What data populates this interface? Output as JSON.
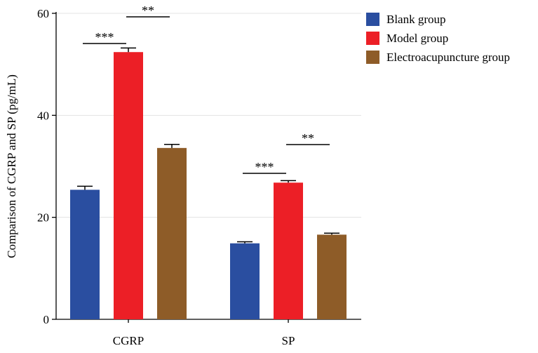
{
  "chart_data": {
    "type": "bar",
    "title": "",
    "xlabel": "",
    "ylabel": "Comparison of CGRP and SP (pg/mL)",
    "ylim": [
      0,
      60
    ],
    "yticks": [
      0,
      20,
      40,
      60
    ],
    "grid": true,
    "legend_position": "right",
    "categories": [
      "CGRP",
      "SP"
    ],
    "series": [
      {
        "name": "Blank group",
        "color": "#2a4ea0",
        "values": [
          25.4,
          14.9
        ],
        "errors": [
          0.7,
          0.3
        ]
      },
      {
        "name": "Model group",
        "color": "#ec1f26",
        "values": [
          52.4,
          26.8
        ],
        "errors": [
          0.8,
          0.4
        ]
      },
      {
        "name": "Electroacupuncture group",
        "color": "#8e5c28",
        "values": [
          33.6,
          16.6
        ],
        "errors": [
          0.7,
          0.3
        ]
      }
    ],
    "annotations": [
      {
        "category": "CGRP",
        "between": [
          "Blank group",
          "Model group"
        ],
        "label": "***"
      },
      {
        "category": "CGRP",
        "between": [
          "Model group",
          "Electroacupuncture group"
        ],
        "label": "**"
      },
      {
        "category": "SP",
        "between": [
          "Blank group",
          "Model group"
        ],
        "label": "***"
      },
      {
        "category": "SP",
        "between": [
          "Model group",
          "Electroacupuncture group"
        ],
        "label": "**"
      }
    ]
  }
}
